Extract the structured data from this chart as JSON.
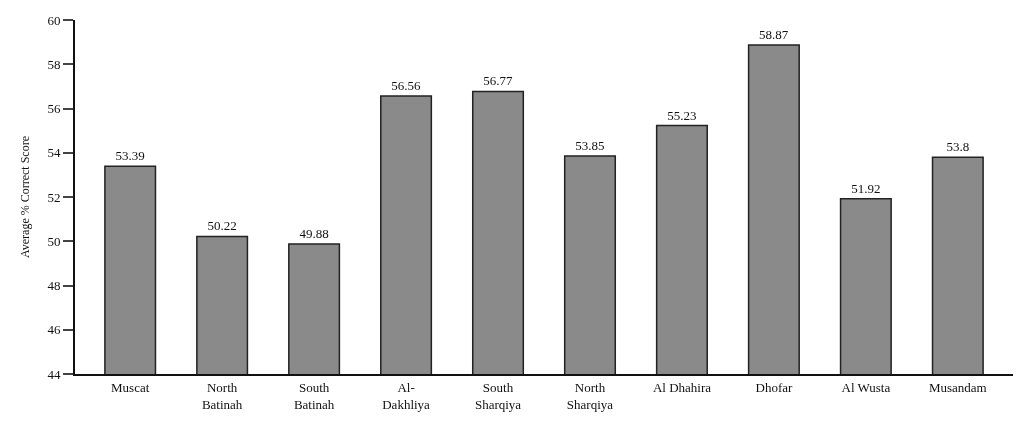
{
  "chart_data": {
    "type": "bar",
    "ylabel": "Average % Correct Score",
    "categories": [
      "Muscat",
      "North\nBatinah",
      "South\nBatinah",
      "Al-\nDakhliya",
      "South\nSharqiya",
      "North\nSharqiya",
      "Al Dhahira",
      "Dhofar",
      "Al Wusta",
      "Musandam"
    ],
    "values": [
      53.39,
      50.22,
      49.88,
      56.56,
      56.77,
      53.85,
      55.23,
      58.87,
      51.92,
      53.8
    ],
    "color": "#8a8a8a",
    "ylim": [
      44,
      60
    ],
    "yticks": [
      44,
      46,
      48,
      50,
      52,
      54,
      56,
      58,
      60
    ],
    "data_labels": true
  }
}
